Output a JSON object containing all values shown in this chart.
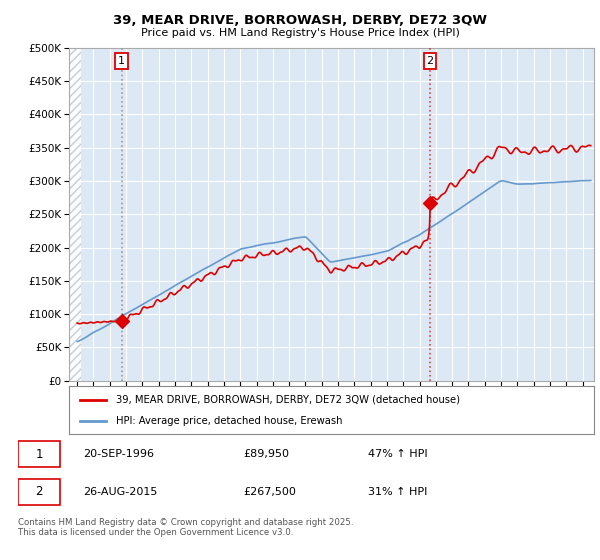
{
  "title": "39, MEAR DRIVE, BORROWASH, DERBY, DE72 3QW",
  "subtitle": "Price paid vs. HM Land Registry's House Price Index (HPI)",
  "legend_line1": "39, MEAR DRIVE, BORROWASH, DERBY, DE72 3QW (detached house)",
  "legend_line2": "HPI: Average price, detached house, Erewash",
  "annotation1_label": "1",
  "annotation1_date": "20-SEP-1996",
  "annotation1_price": "£89,950",
  "annotation1_hpi": "47% ↑ HPI",
  "annotation2_label": "2",
  "annotation2_date": "26-AUG-2015",
  "annotation2_price": "£267,500",
  "annotation2_hpi": "31% ↑ HPI",
  "footer": "Contains HM Land Registry data © Crown copyright and database right 2025.\nThis data is licensed under the Open Government Licence v3.0.",
  "sale1_year": 1996.72,
  "sale1_price": 89950,
  "sale2_year": 2015.65,
  "sale2_price": 267500,
  "red_color": "#dd0000",
  "blue_color": "#6699cc",
  "vline1_color": "#aaaaaa",
  "vline2_color": "#dd0000",
  "background_color": "#ffffff",
  "plot_bg_color": "#dce9f5",
  "hatch_color": "#c0c8d0",
  "ylim": [
    0,
    500000
  ],
  "xlim_start": 1993.5,
  "xlim_end": 2025.7,
  "yticks": [
    0,
    50000,
    100000,
    150000,
    200000,
    250000,
    300000,
    350000,
    400000,
    450000,
    500000
  ]
}
